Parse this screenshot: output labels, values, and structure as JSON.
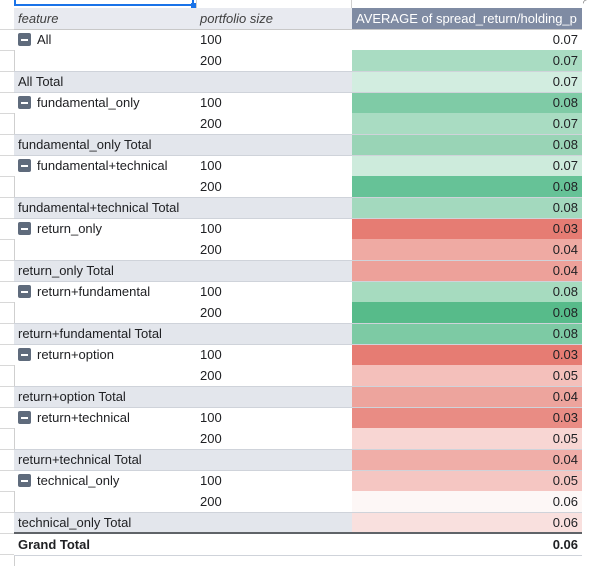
{
  "headers": {
    "feature": "feature",
    "portfolio_size": "portfolio size",
    "metric": "AVERAGE of spread_return/holding_p"
  },
  "colors": {
    "header_metric_bg": "#7f8ba3",
    "subtotal_row_bg": "#e3e6ec",
    "green_strong": "#57bb8a",
    "red_strong": "#e67c73",
    "white": "#ffffff"
  },
  "rows": [
    {
      "type": "group",
      "feature": "All",
      "size": "100",
      "value": "0.07",
      "color": "#ffffff"
    },
    {
      "type": "row",
      "feature": "",
      "size": "200",
      "value": "0.07",
      "color": "#a9dcc2"
    },
    {
      "type": "total",
      "feature": "All Total",
      "size": "",
      "value": "0.07",
      "color": "#d2ede0"
    },
    {
      "type": "group",
      "feature": "fundamental_only",
      "size": "100",
      "value": "0.08",
      "color": "#7fcba6"
    },
    {
      "type": "row",
      "feature": "",
      "size": "200",
      "value": "0.07",
      "color": "#a9dcc2"
    },
    {
      "type": "total",
      "feature": "fundamental_only Total",
      "size": "",
      "value": "0.08",
      "color": "#99d4b6"
    },
    {
      "type": "group",
      "feature": "fundamental+technical",
      "size": "100",
      "value": "0.07",
      "color": "#cdebdc"
    },
    {
      "type": "row",
      "feature": "",
      "size": "200",
      "value": "0.08",
      "color": "#66c297"
    },
    {
      "type": "total",
      "feature": "fundamental+technical Total",
      "size": "",
      "value": "0.08",
      "color": "#a3d9be"
    },
    {
      "type": "group",
      "feature": "return_only",
      "size": "100",
      "value": "0.03",
      "color": "#e67c73"
    },
    {
      "type": "row",
      "feature": "",
      "size": "200",
      "value": "0.04",
      "color": "#efaaa3"
    },
    {
      "type": "total",
      "feature": "return_only Total",
      "size": "",
      "value": "0.04",
      "color": "#eda19a"
    },
    {
      "type": "group",
      "feature": "return+fundamental",
      "size": "100",
      "value": "0.08",
      "color": "#a6dbbf"
    },
    {
      "type": "row",
      "feature": "",
      "size": "200",
      "value": "0.08",
      "color": "#57bb8a"
    },
    {
      "type": "total",
      "feature": "return+fundamental Total",
      "size": "",
      "value": "0.08",
      "color": "#7dcaa4"
    },
    {
      "type": "group",
      "feature": "return+option",
      "size": "100",
      "value": "0.03",
      "color": "#e67c73"
    },
    {
      "type": "row",
      "feature": "",
      "size": "200",
      "value": "0.05",
      "color": "#f4c0bb"
    },
    {
      "type": "total",
      "feature": "return+option Total",
      "size": "",
      "value": "0.04",
      "color": "#eda49d"
    },
    {
      "type": "group",
      "feature": "return+technical",
      "size": "100",
      "value": "0.03",
      "color": "#e98c84"
    },
    {
      "type": "row",
      "feature": "",
      "size": "200",
      "value": "0.05",
      "color": "#f8d6d3"
    },
    {
      "type": "total",
      "feature": "return+technical Total",
      "size": "",
      "value": "0.04",
      "color": "#f0aea8"
    },
    {
      "type": "group",
      "feature": "technical_only",
      "size": "100",
      "value": "0.05",
      "color": "#f5c6c2"
    },
    {
      "type": "row",
      "feature": "",
      "size": "200",
      "value": "0.06",
      "color": "#fdf7f6"
    },
    {
      "type": "total",
      "feature": "technical_only Total",
      "size": "",
      "value": "0.06",
      "color": "#f9e0de"
    }
  ],
  "grand_total": {
    "label": "Grand Total",
    "value": "0.06"
  }
}
